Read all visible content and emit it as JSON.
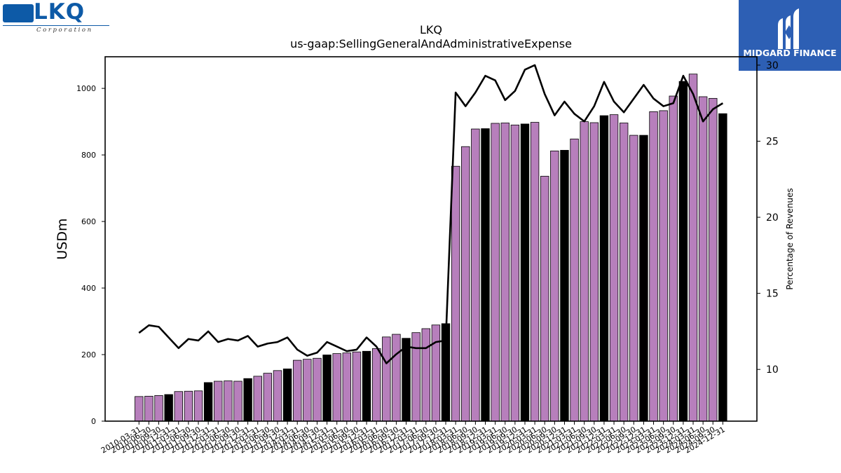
{
  "header": {
    "company": "LKQ",
    "metric": "us-gaap:SellingGeneralAndAdministrativeExpense"
  },
  "logos": {
    "left_word": "LKQ",
    "left_sub": "Corporation",
    "right_name": "MIDGARD FINANCE"
  },
  "chart_data": {
    "type": "bar",
    "title": "LKQ",
    "subtitle": "us-gaap:SellingGeneralAndAdministrativeExpense",
    "ylabel": "USDm",
    "y2label": "Percentage of Revenues",
    "ylim": [
      0,
      1095
    ],
    "y2lim": [
      6.6,
      30.55
    ],
    "yticks": [
      0,
      200,
      400,
      600,
      800,
      1000
    ],
    "y2ticks": [
      10,
      15,
      20,
      25,
      30
    ],
    "colors": {
      "bar": "#b77fbc",
      "bar_highlight": "#000000",
      "line": "#000000"
    },
    "categories": [
      "2010-03-31",
      "2010-06-30",
      "2010-09-30",
      "2010-12-31",
      "2011-03-31",
      "2011-06-30",
      "2011-09-30",
      "2011-12-31",
      "2012-03-31",
      "2012-06-30",
      "2012-09-30",
      "2012-12-31",
      "2013-03-31",
      "2013-06-30",
      "2013-09-30",
      "2013-12-31",
      "2014-03-31",
      "2014-06-30",
      "2014-09-30",
      "2014-12-31",
      "2015-03-31",
      "2015-06-30",
      "2015-09-30",
      "2015-12-31",
      "2016-03-31",
      "2016-06-30",
      "2016-09-30",
      "2016-12-31",
      "2017-03-31",
      "2017-06-30",
      "2017-09-30",
      "2017-12-31",
      "2018-03-31",
      "2018-06-30",
      "2018-09-30",
      "2018-12-31",
      "2019-03-31",
      "2019-06-30",
      "2019-09-30",
      "2019-12-31",
      "2020-03-31",
      "2020-06-30",
      "2020-09-30",
      "2020-12-31",
      "2021-03-31",
      "2021-06-30",
      "2021-09-30",
      "2021-12-31",
      "2022-03-31",
      "2022-06-30",
      "2022-09-30",
      "2022-12-31",
      "2023-03-31",
      "2023-06-30",
      "2023-09-30",
      "2023-12-31",
      "2024-03-31",
      "2024-06-30",
      "2024-09-30",
      "2024-12-31"
    ],
    "xtick_labels": [
      "2010-03-31",
      "2010-06-30",
      "2010-09-30",
      "2010-12-31",
      "2011-03-31",
      "2011-06-30",
      "2011-09-30",
      "2011-12-31",
      "2012-03-31",
      "2012-06-30",
      "2012-09-30",
      "2012-12-31",
      "2013-03-31",
      "2013-06-30",
      "2013-09-30",
      "2013-12-31",
      "2014-03-31",
      "2014-06-30",
      "2014-09-30",
      "2014-12-31",
      "2015-03-31",
      "2015-06-30",
      "2015-09-30",
      "2015-12-31",
      "2016-03-31",
      "2016-06-30",
      "2016-09-30",
      "2016-12-31",
      "2017-03-31",
      "2017-06-30",
      "2017-09-30",
      "2017-12-31",
      "2018-03-31",
      "2018-06-30",
      "2018-09-30",
      "2018-12-31",
      "2019-03-31",
      "2019-06-30",
      "2019-09-30",
      "2019-12-31",
      "2020-03-31",
      "2020-06-30",
      "2020-09-30",
      "2020-12-31",
      "2021-03-31",
      "2021-06-30",
      "2021-09-30",
      "2021-12-31",
      "2022-03-31",
      "2022-06-30",
      "2022-09-30",
      "2022-12-31",
      "2023-03-31",
      "2023-06-30",
      "2023-09-30",
      "2023-12-31",
      "2024-03-31",
      "2024-06-30",
      "2024-09-30",
      "2024-12-31"
    ],
    "values": [
      74,
      75,
      77,
      80,
      89,
      90,
      91,
      116,
      120,
      121,
      120,
      128,
      135,
      144,
      152,
      157,
      183,
      186,
      189,
      199,
      203,
      205,
      208,
      210,
      218,
      253,
      261,
      249,
      266,
      278,
      289,
      293,
      766,
      825,
      878,
      879,
      895,
      896,
      890,
      893,
      898,
      736,
      812,
      814,
      848,
      900,
      897,
      918,
      921,
      896,
      859,
      859,
      930,
      933,
      977,
      1021,
      1043,
      975,
      970,
      924
    ],
    "highlight": [
      false,
      false,
      false,
      true,
      false,
      false,
      false,
      true,
      false,
      false,
      false,
      true,
      false,
      false,
      false,
      true,
      false,
      false,
      false,
      true,
      false,
      false,
      false,
      true,
      false,
      false,
      false,
      true,
      false,
      false,
      false,
      true,
      false,
      false,
      false,
      true,
      false,
      false,
      false,
      true,
      false,
      false,
      false,
      true,
      false,
      false,
      false,
      true,
      false,
      false,
      false,
      true,
      false,
      false,
      false,
      true,
      false,
      false,
      false,
      true
    ],
    "percentage_of_revenues": [
      12.4,
      12.9,
      12.8,
      12.1,
      11.4,
      12.0,
      11.9,
      12.5,
      11.8,
      12.0,
      11.9,
      12.2,
      11.5,
      11.7,
      11.8,
      12.1,
      11.3,
      10.9,
      11.1,
      11.8,
      11.5,
      11.2,
      11.3,
      12.1,
      11.5,
      10.4,
      11.0,
      11.5,
      11.4,
      11.4,
      11.8,
      11.9,
      28.2,
      27.3,
      28.2,
      29.3,
      29.0,
      27.7,
      28.3,
      29.7,
      30.0,
      28.1,
      26.7,
      27.6,
      26.8,
      26.3,
      27.3,
      28.9,
      27.6,
      26.9,
      27.8,
      28.7,
      27.8,
      27.3,
      27.5,
      29.3,
      28.1,
      26.3,
      27.1,
      27.5
    ]
  }
}
